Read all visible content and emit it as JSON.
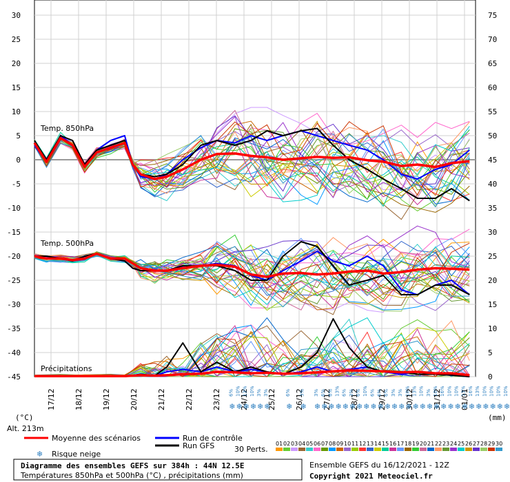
{
  "chart_data": {
    "type": "line",
    "title": "Diagramme des ensembles GEFS sur 384h : 44N 12.5E",
    "subtitle": "Températures 850hPa et 500hPa (°C) , précipitations (mm)",
    "run_label": "Ensemble GEFS du 16/12/2021 - 12Z",
    "copyright": "Copyright 2021 Meteociel.fr",
    "altitude": "Alt. 213m",
    "left_unit": "(°C)",
    "right_unit": "(mm)",
    "left_ticks": [
      30,
      25,
      20,
      15,
      10,
      5,
      0,
      -5,
      -10,
      -15,
      -20,
      -25,
      -30,
      -35,
      -40,
      -45
    ],
    "right_ticks": [
      75,
      70,
      65,
      60,
      55,
      50,
      45,
      40,
      35,
      30,
      25,
      20,
      15,
      10,
      5,
      0
    ],
    "ylim_left": [
      -45,
      30
    ],
    "ylim_right": [
      0,
      75
    ],
    "dates": [
      "17/12",
      "18/12",
      "19/12",
      "20/12",
      "21/12",
      "22/12",
      "23/12",
      "24/12",
      "25/12",
      "26/12",
      "27/12",
      "28/12",
      "29/12",
      "30/12",
      "31/12",
      "01/01"
    ],
    "panel_labels": {
      "t850": "Temp. 850hPa",
      "t500": "Temp. 500hPa",
      "precip": "Précipitations"
    },
    "snow_risk": [
      {
        "day": 4.1,
        "pct": "6%"
      },
      {
        "day": 4.45,
        "pct": "10%"
      },
      {
        "day": 4.8,
        "pct": "13%"
      },
      {
        "day": 5.15,
        "pct": "10%"
      },
      {
        "day": 5.5,
        "pct": "3%"
      },
      {
        "day": 5.85,
        "pct": "3%"
      },
      {
        "day": 6.95,
        "pct": "6%"
      },
      {
        "day": 7.65,
        "pct": "3%"
      },
      {
        "day": 8.35,
        "pct": "3%"
      },
      {
        "day": 8.7,
        "pct": "6%"
      },
      {
        "day": 9.05,
        "pct": "6%"
      },
      {
        "day": 9.4,
        "pct": "13%"
      },
      {
        "day": 9.75,
        "pct": "6%"
      },
      {
        "day": 10.1,
        "pct": "3%"
      },
      {
        "day": 10.45,
        "pct": "6%"
      },
      {
        "day": 10.8,
        "pct": "10%"
      },
      {
        "day": 11.15,
        "pct": "6%"
      },
      {
        "day": 11.5,
        "pct": "6%"
      },
      {
        "day": 11.85,
        "pct": "6%"
      },
      {
        "day": 12.2,
        "pct": "3%"
      },
      {
        "day": 12.55,
        "pct": "3%"
      },
      {
        "day": 12.9,
        "pct": "10%"
      },
      {
        "day": 13.25,
        "pct": "13%"
      },
      {
        "day": 13.6,
        "pct": "10%"
      },
      {
        "day": 13.95,
        "pct": "3%"
      },
      {
        "day": 14.3,
        "pct": "10%"
      },
      {
        "day": 14.65,
        "pct": "16%"
      },
      {
        "day": 15.0,
        "pct": "10%"
      },
      {
        "day": 15.35,
        "pct": "10%"
      },
      {
        "day": 15.7,
        "pct": "13%"
      },
      {
        "day": 16.05,
        "pct": "16%"
      },
      {
        "day": 16.4,
        "pct": "13%"
      },
      {
        "day": 16.75,
        "pct": "10%"
      },
      {
        "day": 17.1,
        "pct": "10%"
      },
      {
        "day": 17.45,
        "pct": "10%"
      },
      {
        "day": 17.8,
        "pct": "10%"
      },
      {
        "day": 18.15,
        "pct": "13%"
      },
      {
        "day": 18.5,
        "pct": "3%"
      },
      {
        "day": 18.85,
        "pct": "13%"
      },
      {
        "day": 19.2,
        "pct": "10%"
      },
      {
        "day": 19.55,
        "pct": "10%"
      },
      {
        "day": 19.9,
        "pct": "10%"
      },
      {
        "day": 20.25,
        "pct": "13%"
      },
      {
        "day": 20.6,
        "pct": "10%"
      },
      {
        "day": 20.95,
        "pct": "16%"
      },
      {
        "day": 21.3,
        "pct": "10%"
      },
      {
        "day": 21.65,
        "pct": "10%"
      }
    ],
    "mean_t850": [
      [
        0,
        3.5
      ],
      [
        0.6,
        -0.5
      ],
      [
        1.3,
        4.5
      ],
      [
        1.9,
        3
      ],
      [
        2.5,
        -1.5
      ],
      [
        3.1,
        1.5
      ],
      [
        3.8,
        2.5
      ],
      [
        4.5,
        3.5
      ],
      [
        4.9,
        -1
      ],
      [
        5.3,
        -3
      ],
      [
        6,
        -4
      ],
      [
        6.6,
        -3.5
      ],
      [
        7.4,
        -2
      ],
      [
        8.3,
        0
      ],
      [
        9.1,
        1.2
      ],
      [
        10,
        1.3
      ],
      [
        10.8,
        0.8
      ],
      [
        11.6,
        0.5
      ],
      [
        12.4,
        0
      ],
      [
        13.3,
        0.3
      ],
      [
        14.1,
        0.6
      ],
      [
        14.9,
        0.4
      ],
      [
        15.7,
        0.5
      ],
      [
        16.6,
        -0.1
      ],
      [
        17.4,
        -0.4
      ],
      [
        18.3,
        -1.3
      ],
      [
        19.1,
        -1
      ],
      [
        20,
        -1.5
      ],
      [
        20.8,
        -0.7
      ],
      [
        21.7,
        -0.3
      ]
    ],
    "control_t850": [
      [
        0,
        3
      ],
      [
        0.6,
        -0.5
      ],
      [
        1.3,
        5
      ],
      [
        1.9,
        3
      ],
      [
        2.5,
        -1
      ],
      [
        3.1,
        2
      ],
      [
        3.8,
        4
      ],
      [
        4.5,
        5
      ],
      [
        4.9,
        -1
      ],
      [
        5.3,
        -3.5
      ],
      [
        6,
        -4
      ],
      [
        6.6,
        -3
      ],
      [
        7.4,
        0
      ],
      [
        8.3,
        2.5
      ],
      [
        9.1,
        4
      ],
      [
        10,
        3.5
      ],
      [
        10.8,
        5
      ],
      [
        11.6,
        4
      ],
      [
        12.4,
        5
      ],
      [
        13.3,
        6
      ],
      [
        14.1,
        5
      ],
      [
        14.9,
        4
      ],
      [
        15.7,
        3
      ],
      [
        16.6,
        2
      ],
      [
        17.4,
        0
      ],
      [
        18.3,
        -3
      ],
      [
        19.1,
        -4
      ],
      [
        20,
        -2
      ],
      [
        20.8,
        -1
      ],
      [
        21.7,
        2
      ]
    ],
    "gfs_t850": [
      [
        0,
        4
      ],
      [
        0.6,
        0
      ],
      [
        1.3,
        5
      ],
      [
        1.9,
        4
      ],
      [
        2.5,
        -1
      ],
      [
        3.1,
        2
      ],
      [
        3.8,
        3
      ],
      [
        4.5,
        4
      ],
      [
        4.9,
        -1
      ],
      [
        5.3,
        -3
      ],
      [
        6,
        -3.5
      ],
      [
        6.6,
        -3
      ],
      [
        7.4,
        -1
      ],
      [
        8.3,
        3
      ],
      [
        9.1,
        4
      ],
      [
        10,
        3
      ],
      [
        10.8,
        4
      ],
      [
        11.6,
        6
      ],
      [
        12.4,
        5
      ],
      [
        13.3,
        6
      ],
      [
        14.1,
        6.5
      ],
      [
        14.9,
        3
      ],
      [
        15.7,
        0
      ],
      [
        16.6,
        -2
      ],
      [
        17.4,
        -4
      ],
      [
        18.3,
        -6
      ],
      [
        19.1,
        -8
      ],
      [
        20,
        -8
      ],
      [
        20.8,
        -6
      ],
      [
        21.7,
        -8.5
      ]
    ],
    "mean_t500": [
      [
        0,
        -20
      ],
      [
        0.6,
        -20.5
      ],
      [
        1.3,
        -20.5
      ],
      [
        1.9,
        -20.8
      ],
      [
        2.5,
        -20.5
      ],
      [
        3.1,
        -19.5
      ],
      [
        3.8,
        -20.5
      ],
      [
        4.5,
        -20.5
      ],
      [
        4.9,
        -21.5
      ],
      [
        5.3,
        -22.5
      ],
      [
        6,
        -23
      ],
      [
        6.6,
        -23
      ],
      [
        7.4,
        -22.5
      ],
      [
        8.3,
        -22
      ],
      [
        9.1,
        -21.8
      ],
      [
        10,
        -22.2
      ],
      [
        10.8,
        -23.8
      ],
      [
        11.6,
        -24.3
      ],
      [
        12.4,
        -23.6
      ],
      [
        13.3,
        -23.5
      ],
      [
        14.1,
        -23.8
      ],
      [
        14.9,
        -23.6
      ],
      [
        15.7,
        -23.2
      ],
      [
        16.6,
        -23
      ],
      [
        17.4,
        -23.6
      ],
      [
        18.3,
        -23.3
      ],
      [
        19.1,
        -22.8
      ],
      [
        20,
        -22.5
      ],
      [
        20.8,
        -22.6
      ],
      [
        21.7,
        -22.8
      ]
    ],
    "control_t500": [
      [
        0,
        -20
      ],
      [
        0.6,
        -20
      ],
      [
        1.3,
        -20.5
      ],
      [
        1.9,
        -21
      ],
      [
        2.5,
        -20
      ],
      [
        3.1,
        -19.5
      ],
      [
        3.8,
        -20.5
      ],
      [
        4.5,
        -21
      ],
      [
        4.9,
        -22.5
      ],
      [
        5.3,
        -23
      ],
      [
        6,
        -23
      ],
      [
        6.6,
        -23
      ],
      [
        7.4,
        -22
      ],
      [
        8.3,
        -22
      ],
      [
        9.1,
        -21.5
      ],
      [
        10,
        -22
      ],
      [
        10.8,
        -24
      ],
      [
        11.6,
        -25
      ],
      [
        12.4,
        -23
      ],
      [
        13.3,
        -21
      ],
      [
        14.1,
        -19
      ],
      [
        14.9,
        -21
      ],
      [
        15.7,
        -22
      ],
      [
        16.6,
        -20
      ],
      [
        17.4,
        -22
      ],
      [
        18.3,
        -27
      ],
      [
        19.1,
        -28
      ],
      [
        20,
        -26
      ],
      [
        20.8,
        -25
      ],
      [
        21.7,
        -28
      ]
    ],
    "gfs_t500": [
      [
        0,
        -20
      ],
      [
        0.6,
        -20
      ],
      [
        1.3,
        -20.5
      ],
      [
        1.9,
        -21
      ],
      [
        2.5,
        -20
      ],
      [
        3.1,
        -19.5
      ],
      [
        3.8,
        -20.5
      ],
      [
        4.5,
        -21
      ],
      [
        4.9,
        -22.5
      ],
      [
        5.3,
        -23
      ],
      [
        6,
        -23
      ],
      [
        6.6,
        -23
      ],
      [
        7.4,
        -22
      ],
      [
        8.3,
        -22
      ],
      [
        9.1,
        -22
      ],
      [
        10,
        -23
      ],
      [
        10.8,
        -25
      ],
      [
        11.6,
        -25
      ],
      [
        12.4,
        -20
      ],
      [
        13.3,
        -17
      ],
      [
        14.1,
        -18
      ],
      [
        14.9,
        -22
      ],
      [
        15.7,
        -26
      ],
      [
        16.6,
        -25
      ],
      [
        17.4,
        -24
      ],
      [
        18.3,
        -28
      ],
      [
        19.1,
        -28
      ],
      [
        20,
        -26
      ],
      [
        20.8,
        -26
      ],
      [
        21.7,
        -28
      ]
    ],
    "mean_precip": [
      [
        0,
        0.1
      ],
      [
        1.3,
        0.1
      ],
      [
        2.5,
        0.1
      ],
      [
        3.8,
        0.1
      ],
      [
        4.5,
        0.1
      ],
      [
        5.3,
        0.3
      ],
      [
        6,
        0.2
      ],
      [
        6.6,
        0.3
      ],
      [
        7.4,
        0.5
      ],
      [
        8.3,
        0.6
      ],
      [
        9.1,
        1
      ],
      [
        10,
        0.9
      ],
      [
        10.8,
        0.7
      ],
      [
        11.6,
        0.8
      ],
      [
        12.4,
        0.6
      ],
      [
        13.3,
        0.7
      ],
      [
        14.1,
        0.9
      ],
      [
        14.9,
        1.1
      ],
      [
        15.7,
        1.3
      ],
      [
        16.6,
        1.2
      ],
      [
        17.4,
        1.1
      ],
      [
        18.3,
        0.9
      ],
      [
        19.1,
        1
      ],
      [
        20,
        0.7
      ],
      [
        20.8,
        0.7
      ],
      [
        21.7,
        0.3
      ]
    ],
    "control_precip": [
      [
        0,
        0
      ],
      [
        4.5,
        0
      ],
      [
        5.3,
        0.5
      ],
      [
        6,
        0.2
      ],
      [
        6.6,
        1
      ],
      [
        7.4,
        1.5
      ],
      [
        8.3,
        1
      ],
      [
        9.1,
        2
      ],
      [
        10,
        1
      ],
      [
        10.8,
        1.5
      ],
      [
        11.6,
        1
      ],
      [
        12.4,
        0.5
      ],
      [
        13.3,
        1
      ],
      [
        14.1,
        2
      ],
      [
        14.9,
        1
      ],
      [
        15.7,
        1.5
      ],
      [
        16.6,
        2
      ],
      [
        17.4,
        1
      ],
      [
        18.3,
        0.5
      ],
      [
        19.1,
        1
      ],
      [
        20,
        0.5
      ],
      [
        20.8,
        0.3
      ],
      [
        21.7,
        0
      ]
    ],
    "gfs_precip": [
      [
        0,
        0
      ],
      [
        4.5,
        0
      ],
      [
        5.3,
        0.5
      ],
      [
        6,
        0.2
      ],
      [
        6.6,
        2
      ],
      [
        7.4,
        7
      ],
      [
        8.3,
        1
      ],
      [
        9.1,
        3
      ],
      [
        10,
        1
      ],
      [
        10.8,
        2
      ],
      [
        11.6,
        1
      ],
      [
        12.4,
        0.5
      ],
      [
        13.3,
        2
      ],
      [
        14.1,
        5
      ],
      [
        14.9,
        12
      ],
      [
        15.7,
        6
      ],
      [
        16.6,
        2
      ],
      [
        17.4,
        1
      ],
      [
        18.3,
        1
      ],
      [
        19.1,
        0.5
      ],
      [
        20,
        0.5
      ],
      [
        20.8,
        0.3
      ],
      [
        21.7,
        0
      ]
    ],
    "legend": {
      "mean": "Moyenne des scénarios",
      "control": "Run de contrôle",
      "gfs": "Run GFS",
      "snow": "Risque neige",
      "perts": "30 Perts."
    },
    "perturbation_labels": [
      "01",
      "02",
      "03",
      "04",
      "05",
      "06",
      "07",
      "08",
      "09",
      "10",
      "11",
      "12",
      "13",
      "14",
      "15",
      "16",
      "17",
      "18",
      "19",
      "20",
      "21",
      "22",
      "23",
      "24",
      "25",
      "26",
      "27",
      "28",
      "29",
      "30"
    ],
    "colors": {
      "mean": "#ff0000",
      "control": "#0000ff",
      "gfs": "#000000",
      "snow": "#2f80c0",
      "perturbations": [
        "#ff9900",
        "#66cc33",
        "#cc99ff",
        "#996633",
        "#33cccc",
        "#ff66cc",
        "#669900",
        "#0099ff",
        "#cc6600",
        "#9966cc",
        "#99cc00",
        "#ff3333",
        "#3366cc",
        "#cccc00",
        "#00cc99",
        "#cc3399",
        "#6699ff",
        "#996600",
        "#33cc33",
        "#cc6699",
        "#0066cc",
        "#ff9966",
        "#669933",
        "#9933cc",
        "#00cccc",
        "#cc9900",
        "#6633cc",
        "#99cc66",
        "#cc3300",
        "#3399cc"
      ]
    }
  }
}
